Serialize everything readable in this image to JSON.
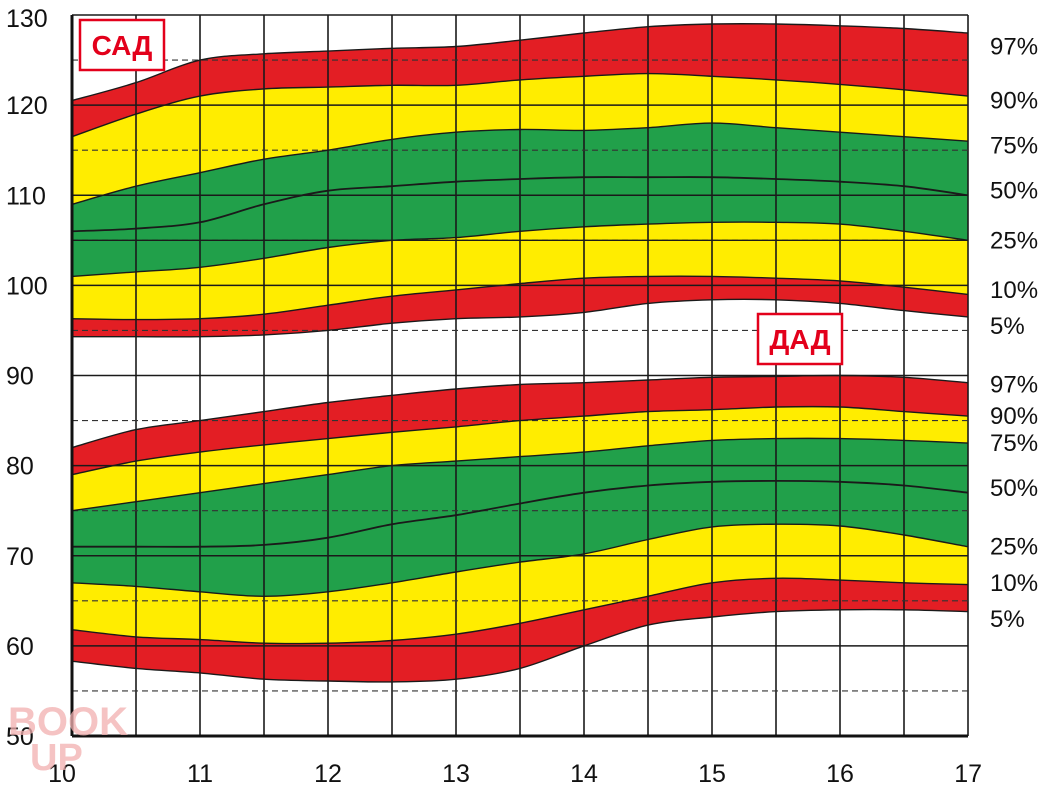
{
  "chart_data": {
    "type": "area",
    "title": "",
    "xlabel": "",
    "ylabel": "",
    "xlim": [
      10,
      17
    ],
    "ylim": [
      50,
      130
    ],
    "x_ticks": [
      "10",
      "11",
      "12",
      "13",
      "14",
      "15",
      "16",
      "17"
    ],
    "y_ticks": [
      "50",
      "60",
      "70",
      "80",
      "90",
      "100",
      "110",
      "120",
      "130"
    ],
    "grid": true,
    "colors": {
      "red": "#e31e24",
      "yellow": "#ffed00",
      "green": "#21a04a",
      "line": "#1a1a1a"
    },
    "x": [
      10,
      10.5,
      11,
      11.5,
      12,
      12.5,
      13,
      13.5,
      14,
      14.5,
      15,
      15.5,
      16,
      16.5,
      17
    ],
    "groups": [
      {
        "name": "САД",
        "label_position": "top-left",
        "percentile_labels": [
          "97%",
          "90%",
          "75%",
          "50%",
          "25%",
          "10%",
          "5%"
        ],
        "label_values": [
          126.5,
          120.5,
          115.5,
          110.5,
          105,
          99.5,
          95.5
        ],
        "p_top": [
          120.5,
          122.5,
          125,
          125.7,
          126,
          126.3,
          126.5,
          127.2,
          128,
          128.7,
          129,
          129,
          128.8,
          128.5,
          128
        ],
        "p97": [
          116.5,
          119,
          121,
          121.8,
          122,
          122.2,
          122.2,
          122.8,
          123.2,
          123.5,
          123.2,
          122.8,
          122.3,
          121.7,
          121
        ],
        "p90": [
          109,
          111,
          112.5,
          114,
          115,
          116.2,
          117,
          117.3,
          117.2,
          117.5,
          118,
          117.5,
          117,
          116.5,
          116
        ],
        "p75": [
          106,
          106.3,
          107,
          109,
          110.5,
          111,
          111.5,
          111.8,
          112,
          112,
          112,
          111.8,
          111.5,
          111,
          110
        ],
        "p50": [
          105,
          105,
          105,
          105,
          105,
          105,
          105,
          105,
          105,
          105,
          105,
          105,
          105,
          105,
          105
        ],
        "p25": [
          101,
          101.5,
          102,
          103,
          104.2,
          105,
          105.3,
          106,
          106.5,
          106.8,
          107,
          107,
          106.8,
          106,
          105
        ],
        "p10": [
          96.3,
          96.2,
          96.3,
          96.8,
          97.8,
          98.8,
          99.5,
          100.2,
          100.8,
          101,
          101,
          100.8,
          100.5,
          99.8,
          99
        ],
        "p5": [
          94.3,
          94.3,
          94.3,
          94.5,
          95,
          95.8,
          96.3,
          96.5,
          97,
          98,
          98.4,
          98.4,
          98,
          97.2,
          96.5
        ]
      },
      {
        "name": "ДАД",
        "label_position": "top-right",
        "percentile_labels": [
          "97%",
          "90%",
          "75%",
          "50%",
          "25%",
          "10%",
          "5%"
        ],
        "label_values": [
          89,
          85.5,
          82.5,
          77.5,
          71,
          67,
          63
        ],
        "p_top": [
          82,
          84,
          85,
          86,
          87,
          87.8,
          88.5,
          89,
          89.2,
          89.5,
          89.8,
          89.9,
          90,
          89.8,
          89.2
        ],
        "p97": [
          79,
          80.5,
          81.5,
          82.3,
          83,
          83.7,
          84.3,
          85,
          85.5,
          86,
          86.2,
          86.5,
          86.5,
          86,
          85.5
        ],
        "p90": [
          75,
          76,
          77,
          78,
          79,
          80,
          80.5,
          81,
          81.5,
          82.2,
          82.8,
          83,
          83,
          82.8,
          82.5
        ],
        "p75": [
          71,
          71,
          71,
          71.2,
          72,
          73.5,
          74.5,
          75.8,
          77,
          77.8,
          78.2,
          78.3,
          78.2,
          77.8,
          77
        ],
        "p50": [
          70,
          70,
          70,
          70,
          70,
          70,
          70,
          70,
          70,
          70,
          70,
          70,
          70,
          70,
          70
        ],
        "p25": [
          67,
          66.6,
          66,
          65.5,
          66,
          67,
          68.2,
          69.3,
          70.2,
          71.8,
          73.2,
          73.5,
          73.3,
          72.3,
          71
        ],
        "p10": [
          61.8,
          61,
          60.7,
          60.3,
          60.3,
          60.6,
          61.3,
          62.5,
          64,
          65.5,
          67,
          67.5,
          67.3,
          67,
          66.8
        ],
        "p5": [
          58.3,
          57.5,
          57,
          56.3,
          56.1,
          56,
          56.3,
          57.5,
          60,
          62.3,
          63.2,
          63.8,
          64,
          64,
          63.8
        ]
      }
    ]
  },
  "watermark": {
    "line1": "BOOK",
    "line2": "UP"
  }
}
